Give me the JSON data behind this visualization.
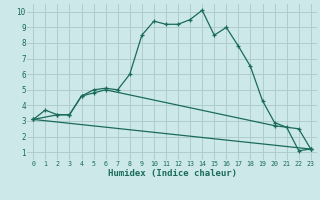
{
  "xlabel": "Humidex (Indice chaleur)",
  "background_color": "#cde8e8",
  "grid_color": "#b0cccc",
  "line_color": "#1a6b5a",
  "xlim": [
    -0.5,
    23.5
  ],
  "ylim": [
    0.5,
    10.5
  ],
  "xticks": [
    0,
    1,
    2,
    3,
    4,
    5,
    6,
    7,
    8,
    9,
    10,
    11,
    12,
    13,
    14,
    15,
    16,
    17,
    18,
    19,
    20,
    21,
    22,
    23
  ],
  "yticks": [
    1,
    2,
    3,
    4,
    5,
    6,
    7,
    8,
    9,
    10
  ],
  "series": [
    {
      "x": [
        0,
        1,
        2,
        3,
        4,
        5,
        6,
        7,
        8,
        9,
        10,
        11,
        12,
        13,
        14,
        15,
        16,
        17,
        18,
        19,
        20,
        21,
        22,
        23
      ],
      "y": [
        3.1,
        3.7,
        3.4,
        3.4,
        4.6,
        5.0,
        5.1,
        5.0,
        6.0,
        8.5,
        9.4,
        9.2,
        9.2,
        9.5,
        10.1,
        8.5,
        9.0,
        7.8,
        6.5,
        4.3,
        2.9,
        2.6,
        1.1,
        1.2
      ]
    },
    {
      "x": [
        0,
        2,
        3,
        4,
        5,
        6,
        20,
        22,
        23
      ],
      "y": [
        3.1,
        3.4,
        3.4,
        4.6,
        4.8,
        5.0,
        2.7,
        2.5,
        1.2
      ]
    },
    {
      "x": [
        0,
        23
      ],
      "y": [
        3.1,
        1.2
      ]
    }
  ]
}
